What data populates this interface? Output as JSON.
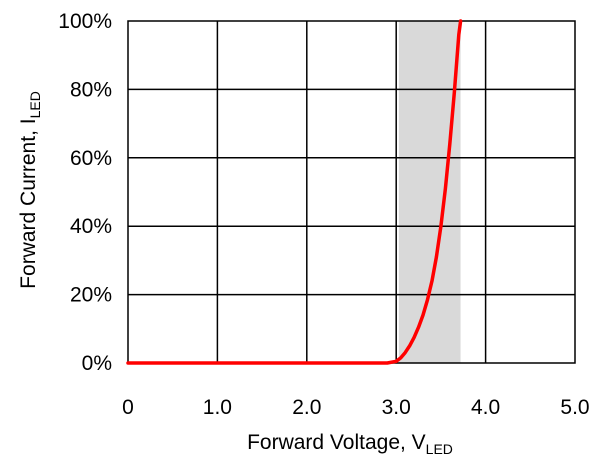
{
  "chart_data": {
    "type": "line",
    "xlabel": "Forward Voltage, V",
    "xlabel_subscript": "LED",
    "ylabel": "Forward Current, I",
    "ylabel_subscript": "LED",
    "xlim": [
      0,
      5
    ],
    "ylim": [
      0,
      100
    ],
    "x_ticks": [
      0,
      1,
      2,
      3,
      4,
      5
    ],
    "x_tick_labels": [
      "0",
      "1.0",
      "2.0",
      "3.0",
      "4.0",
      "5.0"
    ],
    "y_ticks": [
      0,
      20,
      40,
      60,
      80,
      100
    ],
    "y_tick_labels": [
      "0%",
      "20%",
      "40%",
      "60%",
      "80%",
      "100%"
    ],
    "grid": true,
    "shaded_region": {
      "x_range": [
        3.03,
        3.72
      ],
      "color": "#d9d9d9"
    },
    "series": [
      {
        "color": "#ff0000",
        "x": [
          0,
          1,
          2,
          2.9,
          3.0,
          3.05,
          3.1,
          3.15,
          3.2,
          3.25,
          3.3,
          3.35,
          3.4,
          3.45,
          3.5,
          3.55,
          3.6,
          3.65,
          3.7,
          3.72
        ],
        "y": [
          0,
          0,
          0,
          0,
          0.5,
          1.5,
          3,
          5,
          7.5,
          10.5,
          14,
          18.5,
          24,
          31,
          40,
          51,
          64,
          79,
          96,
          100
        ]
      }
    ]
  }
}
